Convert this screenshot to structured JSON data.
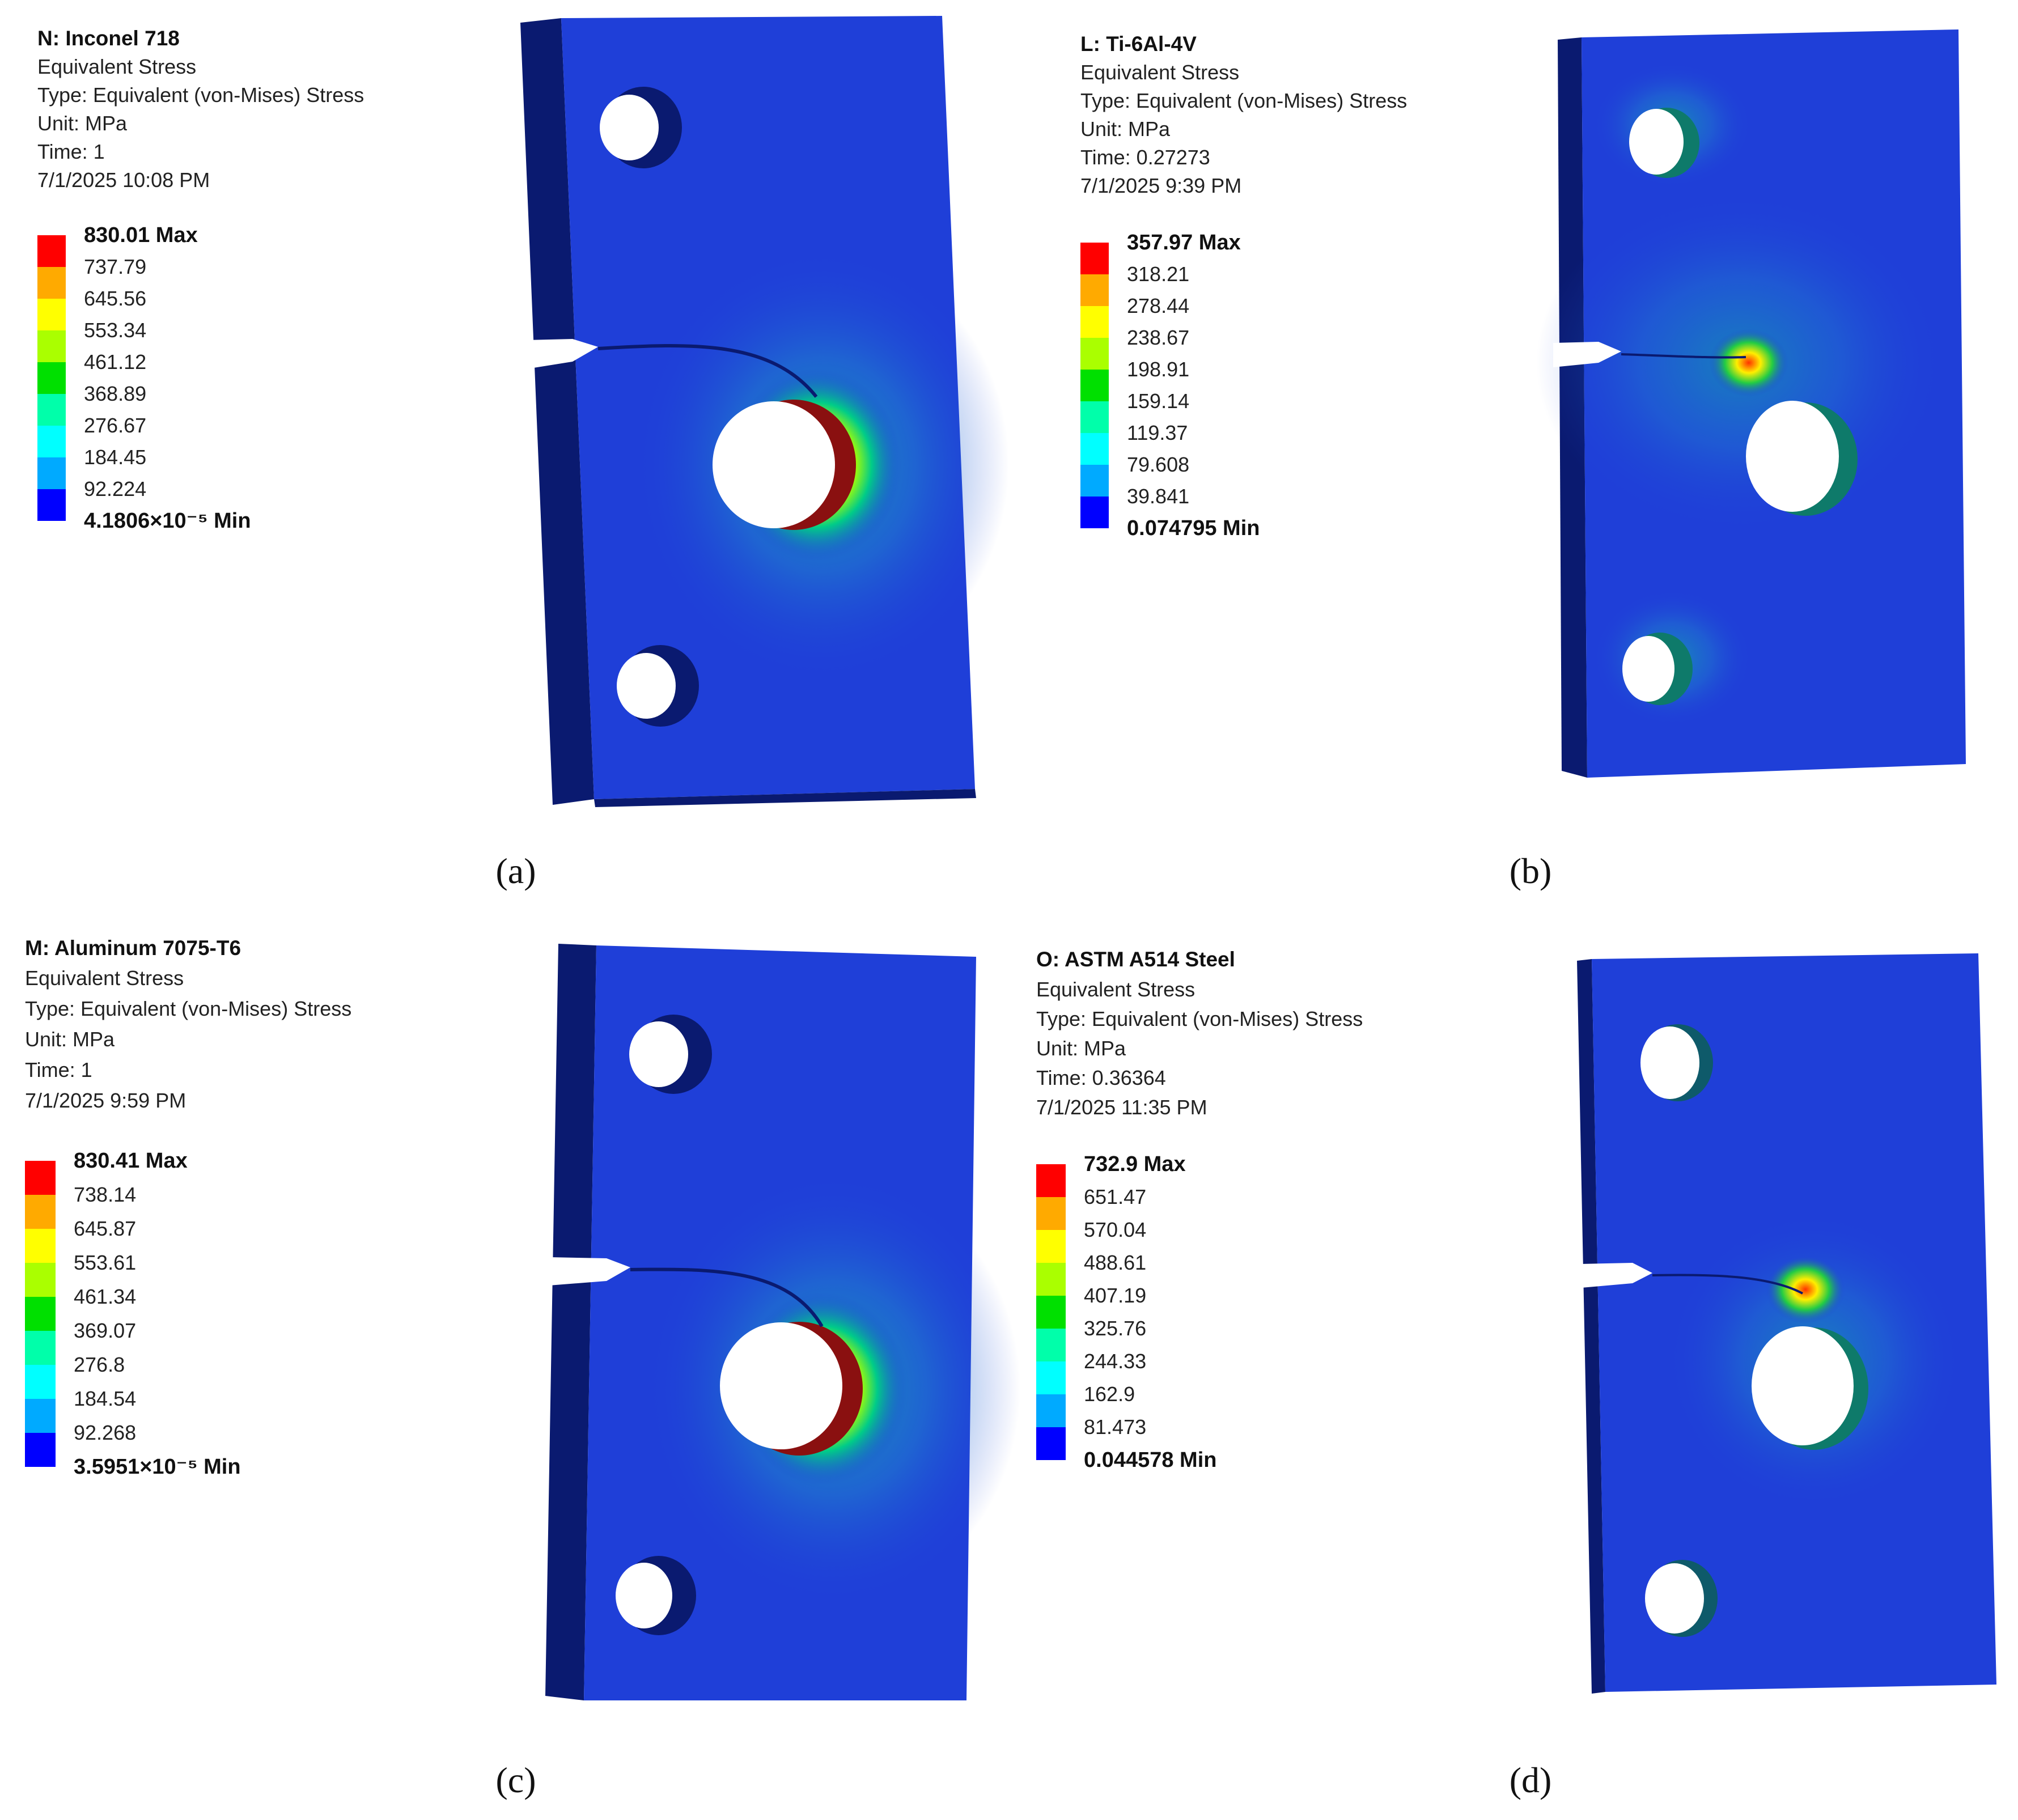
{
  "panels": [
    {
      "id": "a",
      "caption": "(a)",
      "title": "N: Inconel 718",
      "lines": [
        "Equivalent Stress",
        "Type: Equivalent (von-Mises) Stress",
        "Unit: MPa",
        "Time: 1",
        "7/1/2025 10:08 PM"
      ],
      "legend_labels": [
        "830.01 Max",
        "737.79",
        "645.56",
        "553.34",
        "461.12",
        "368.89",
        "276.67",
        "184.45",
        "92.224",
        "4.1806×10⁻⁵ Min"
      ]
    },
    {
      "id": "b",
      "caption": "(b)",
      "title": "L: Ti-6Al-4V",
      "lines": [
        "Equivalent Stress",
        "Type: Equivalent (von-Mises) Stress",
        "Unit: MPa",
        "Time: 0.27273",
        "7/1/2025 9:39 PM"
      ],
      "legend_labels": [
        "357.97 Max",
        "318.21",
        "278.44",
        "238.67",
        "198.91",
        "159.14",
        "119.37",
        "79.608",
        "39.841",
        "0.074795 Min"
      ]
    },
    {
      "id": "c",
      "caption": "(c)",
      "title": "M: Aluminum 7075-T6",
      "lines": [
        "Equivalent Stress",
        "Type: Equivalent (von-Mises) Stress",
        "Unit: MPa",
        "Time: 1",
        "7/1/2025 9:59 PM"
      ],
      "legend_labels": [
        "830.41 Max",
        "738.14",
        "645.87",
        "553.61",
        "461.34",
        "369.07",
        "276.8",
        "184.54",
        "92.268",
        "3.5951×10⁻⁵ Min"
      ]
    },
    {
      "id": "d",
      "caption": "(d)",
      "title": "O: ASTM A514 Steel",
      "lines": [
        "Equivalent Stress",
        "Type: Equivalent (von-Mises) Stress",
        "Unit: MPa",
        "Time: 0.36364",
        "7/1/2025 11:35 PM"
      ],
      "legend_labels": [
        "732.9 Max",
        "651.47",
        "570.04",
        "488.61",
        "407.19",
        "325.76",
        "244.33",
        "162.9",
        "81.473",
        "0.044578 Min"
      ]
    }
  ],
  "colors": {
    "legend_scale": [
      "#ff0000",
      "#ffaa00",
      "#ffff00",
      "#aaff00",
      "#00e000",
      "#00ffaa",
      "#00ffff",
      "#00aaff",
      "#0000ff"
    ],
    "plate_face": "#1f3fd8",
    "plate_edge": "#0a1a70",
    "hot_spot": "#cc0000"
  }
}
